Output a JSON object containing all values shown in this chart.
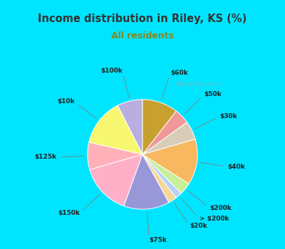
{
  "title": "Income distribution in Riley, KS (%)",
  "subtitle": "All residents",
  "watermark": "City-Data.com",
  "segments": [
    {
      "label": "$100k",
      "value": 7.5,
      "color": "#b8aee0"
    },
    {
      "label": "$10k",
      "value": 14.0,
      "color": "#f8f870"
    },
    {
      "label": "$125k",
      "value": 8.0,
      "color": "#ffb0b8"
    },
    {
      "label": "$150k",
      "value": 15.0,
      "color": "#ffb0c8"
    },
    {
      "label": "$75k",
      "value": 13.5,
      "color": "#9898d8"
    },
    {
      "label": "$20k",
      "value": 2.5,
      "color": "#f5d898"
    },
    {
      "label": "> $200k",
      "value": 2.0,
      "color": "#b8d0f8"
    },
    {
      "label": "$200k",
      "value": 3.5,
      "color": "#c8f098"
    },
    {
      "label": "$40k",
      "value": 13.5,
      "color": "#f8b860"
    },
    {
      "label": "$30k",
      "value": 5.5,
      "color": "#d8ceb8"
    },
    {
      "label": "$50k",
      "value": 4.5,
      "color": "#f09898"
    },
    {
      "label": "$60k",
      "value": 10.5,
      "color": "#c8a030"
    }
  ],
  "background_color": "#e8f5ee",
  "title_bg_color": "#00e5ff",
  "title_color": "#333333",
  "subtitle_color": "#888800",
  "label_color": "#222222",
  "fig_bg": "#00e5ff",
  "chart_bg_gradient_top": "#ffffff",
  "chart_bg_gradient_bottom": "#d0f0d8"
}
